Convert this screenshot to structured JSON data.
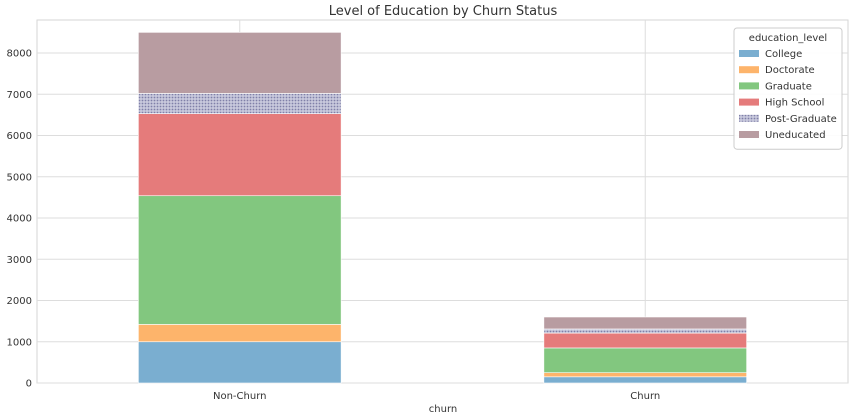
{
  "chart_data": {
    "type": "bar",
    "stacked": true,
    "title": "Level of Education by Churn Status",
    "xlabel": "churn",
    "ylabel": "",
    "categories": [
      "Non-Churn",
      "Churn"
    ],
    "ylim": [
      0,
      8800
    ],
    "yticks": [
      0,
      1000,
      2000,
      3000,
      4000,
      5000,
      6000,
      7000,
      8000
    ],
    "grid": true,
    "legend": {
      "title": "education_level",
      "position": "top-right"
    },
    "series": [
      {
        "name": "College",
        "color": "#7aaed0",
        "values": [
          1000,
          150
        ]
      },
      {
        "name": "Doctorate",
        "color": "#fdb46b",
        "values": [
          420,
          100
        ]
      },
      {
        "name": "Graduate",
        "color": "#82c77f",
        "values": [
          3120,
          600
        ]
      },
      {
        "name": "High School",
        "color": "#e57b7b",
        "values": [
          1990,
          360
        ]
      },
      {
        "name": "Post-Graduate",
        "color": "#a8a9c8",
        "pattern": "dotted",
        "values": [
          490,
          100
        ]
      },
      {
        "name": "Uneducated",
        "color": "#b89ca1",
        "values": [
          1480,
          290
        ]
      }
    ]
  }
}
